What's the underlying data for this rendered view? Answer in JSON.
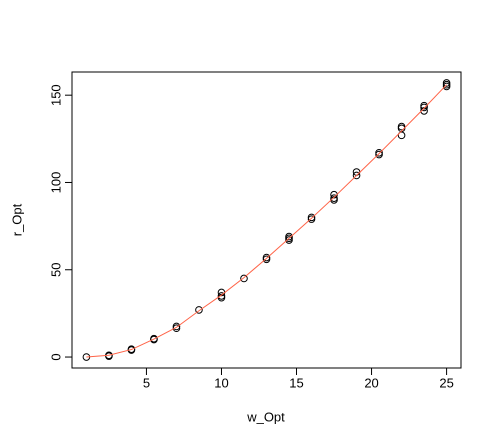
{
  "chart_data": {
    "type": "scatter",
    "xlabel": "w_Opt",
    "ylabel": "r_Opt",
    "xlim": [
      0.04,
      25.96
    ],
    "ylim": [
      -6.28,
      163.28
    ],
    "xticks": [
      5,
      10,
      15,
      20,
      25
    ],
    "yticks": [
      0,
      50,
      100,
      150
    ],
    "series": [
      {
        "type": "scatter",
        "color": "#000000",
        "x": [
          1,
          2.5,
          2.5,
          4,
          4,
          5.5,
          5.5,
          7,
          7,
          8.5,
          10,
          10,
          10,
          11.5,
          13,
          13,
          14.5,
          14.5,
          14.5,
          16,
          16,
          17.5,
          17.5,
          17.5,
          19,
          19,
          20.5,
          20.5,
          22,
          22,
          22,
          23.5,
          23.5,
          23.5,
          25,
          25,
          25
        ],
        "values": [
          0,
          1,
          0.5,
          4,
          4.5,
          10,
          10.5,
          16.5,
          17.5,
          27,
          34,
          35,
          37,
          45,
          56,
          57,
          67,
          68,
          69,
          79,
          80,
          90,
          91,
          93,
          104,
          106,
          116,
          117,
          127,
          131,
          132,
          141,
          143,
          144,
          155,
          156,
          157
        ]
      },
      {
        "type": "line",
        "color": "#ff6347",
        "x": [
          1,
          2.5,
          4,
          5.5,
          7,
          8.5,
          10,
          11.5,
          13,
          14.5,
          16,
          17.5,
          19,
          20.5,
          22,
          23.5,
          25
        ],
        "values": [
          0,
          1,
          4.3,
          10.3,
          17,
          26.5,
          35.5,
          45.5,
          56.5,
          68,
          79.5,
          91.5,
          104,
          116.5,
          129.5,
          142.5,
          156
        ]
      }
    ]
  }
}
